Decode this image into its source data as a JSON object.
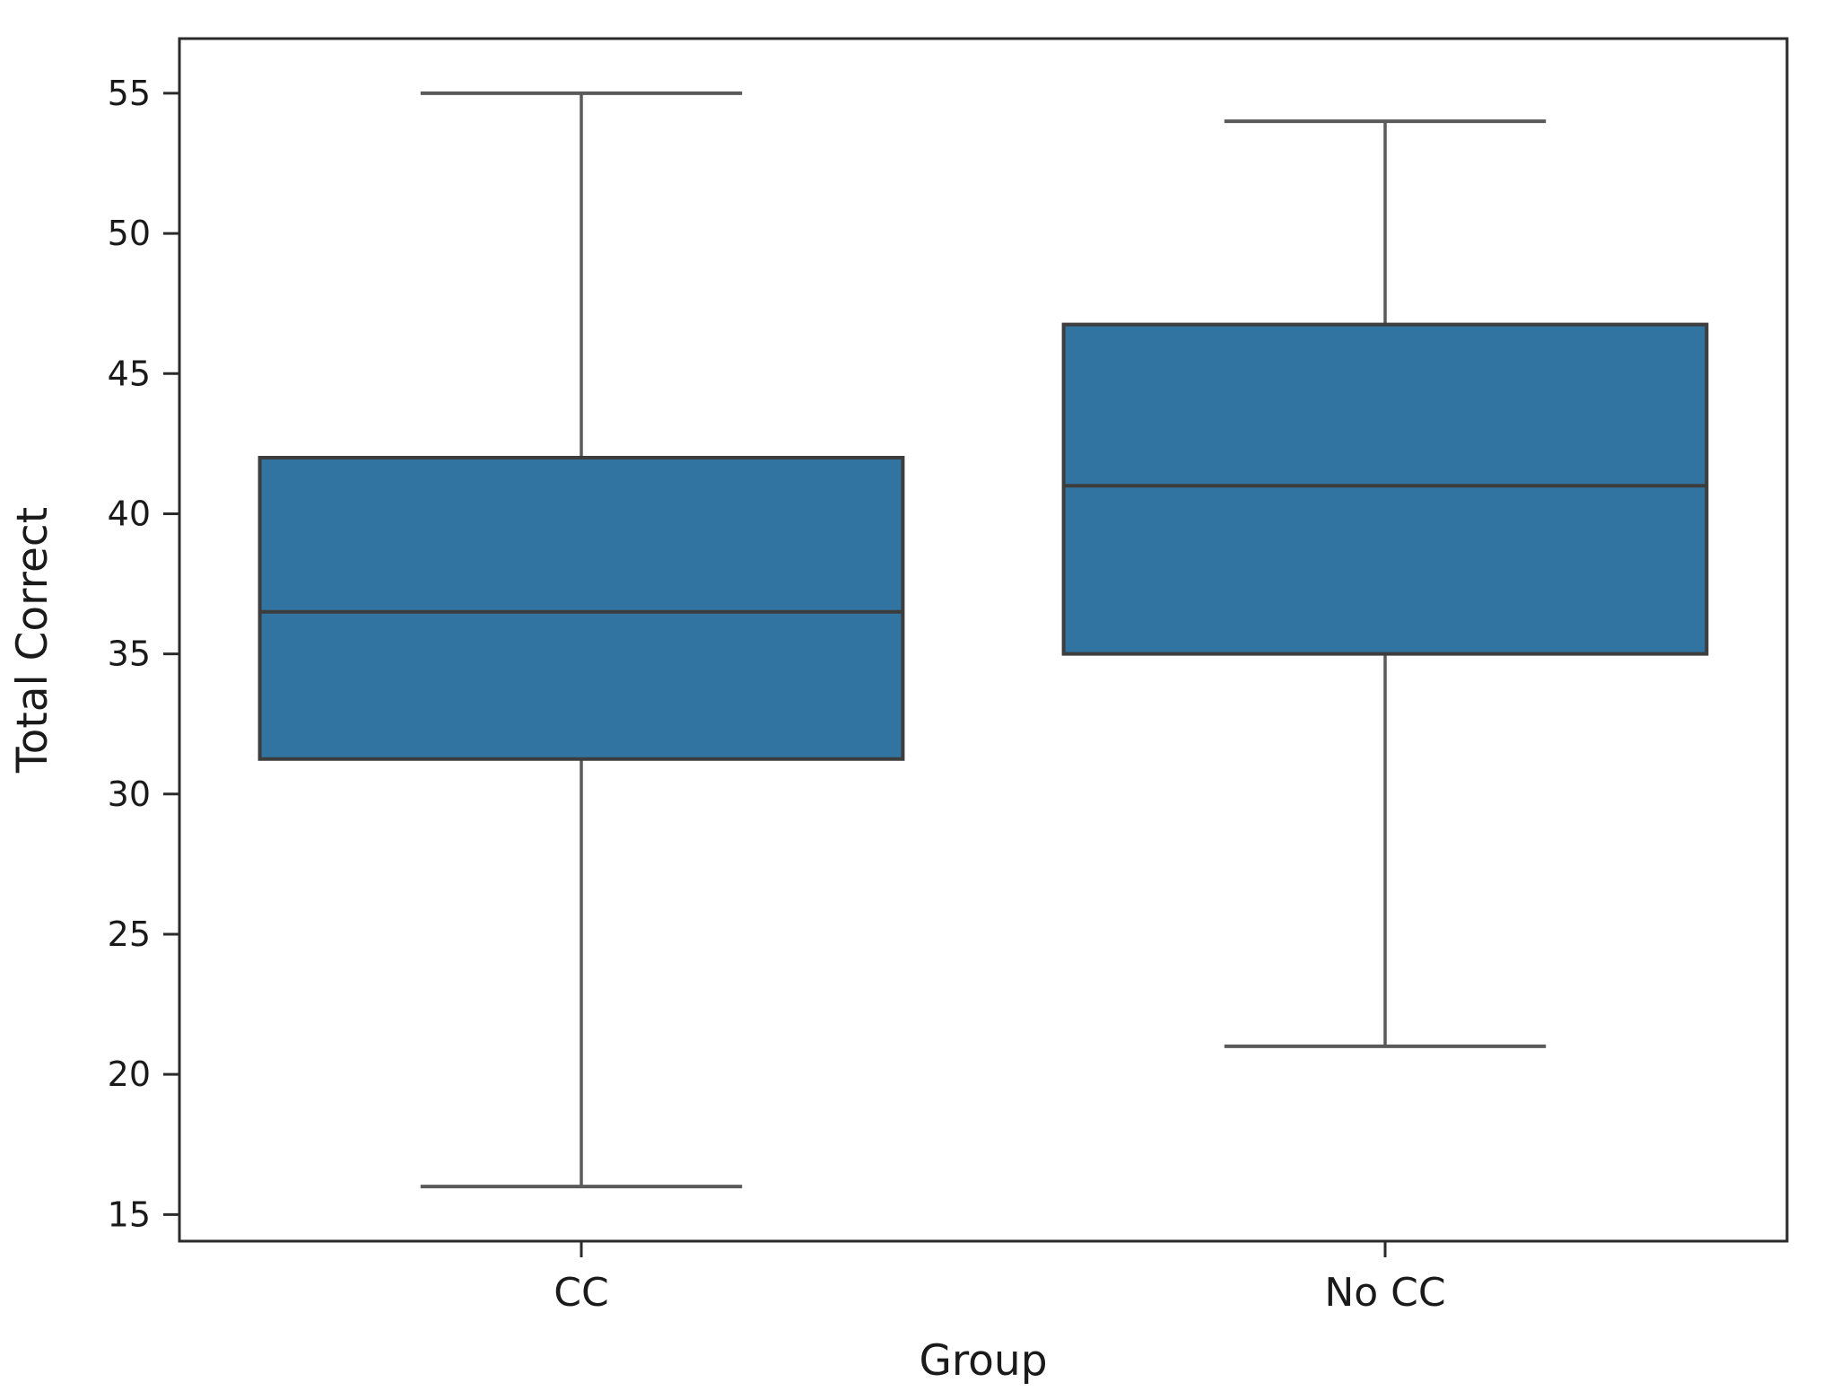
{
  "chart_data": {
    "type": "box",
    "xlabel": "Group",
    "ylabel": "Total Correct",
    "categories": [
      "CC",
      "No CC"
    ],
    "series": [
      {
        "label": "CC",
        "whisker_low": 16,
        "q1": 31.25,
        "median": 36.5,
        "q3": 42.0,
        "whisker_high": 55
      },
      {
        "label": "No CC",
        "whisker_low": 21,
        "q1": 35.0,
        "median": 41.0,
        "q3": 46.75,
        "whisker_high": 54
      }
    ],
    "ylim": [
      14.05,
      56.95
    ],
    "yticks": [
      15,
      20,
      25,
      30,
      35,
      40,
      45,
      50,
      55
    ],
    "grid": false,
    "legend_position": "none",
    "colors": {
      "box_fill": "#3274A1",
      "box_edge": "#3d3d3d",
      "median_line": "#3d3d3d",
      "whisker": "#5a5a5a",
      "spine": "#2b2b2b",
      "text": "#1a1a1a"
    }
  }
}
